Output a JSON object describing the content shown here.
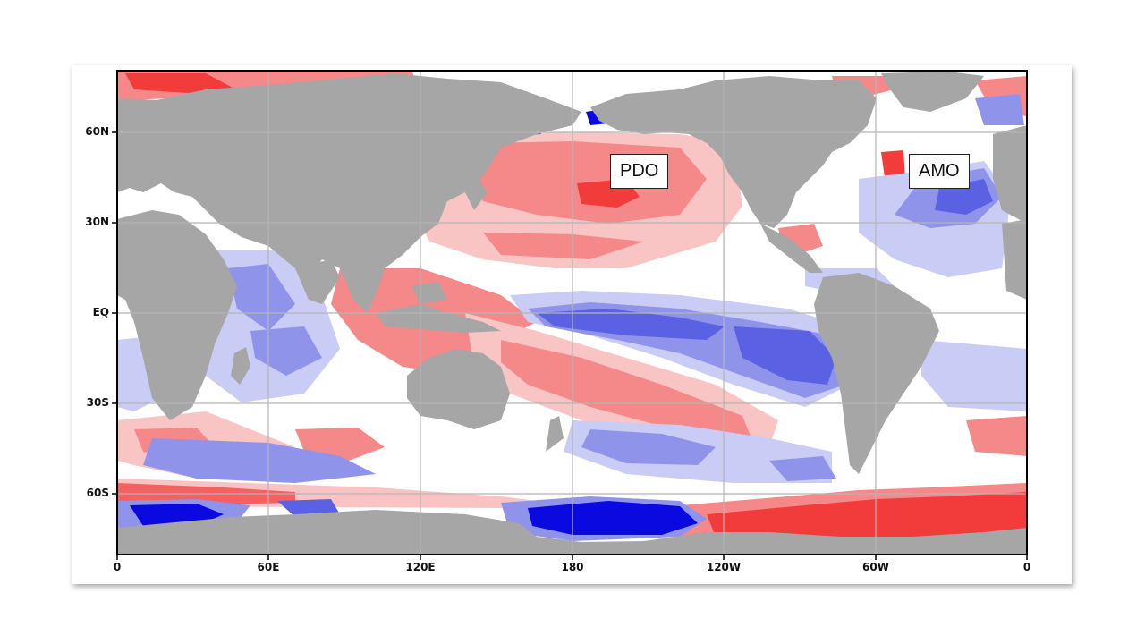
{
  "map": {
    "lat_labels": [
      "60N",
      "30N",
      "EQ",
      "30S",
      "60S"
    ],
    "lon_labels": [
      "0",
      "60E",
      "120E",
      "180",
      "120W",
      "60W",
      "0"
    ],
    "callouts": {
      "pdo": "PDO",
      "amo": "AMO"
    },
    "colors": {
      "land": "#a6a6a6",
      "ocean_neutral": "#ffffff",
      "warm_strong": "#f23b3b",
      "warm_medium": "#f58888",
      "warm_light": "#f9c4c4",
      "cool_light": "#c9ccf4",
      "cool_medium": "#8f94ea",
      "cool_strong": "#5a61e3",
      "cool_deep": "#0a0ae0",
      "grid": "#b5b5b5",
      "frame": "#000000"
    }
  }
}
